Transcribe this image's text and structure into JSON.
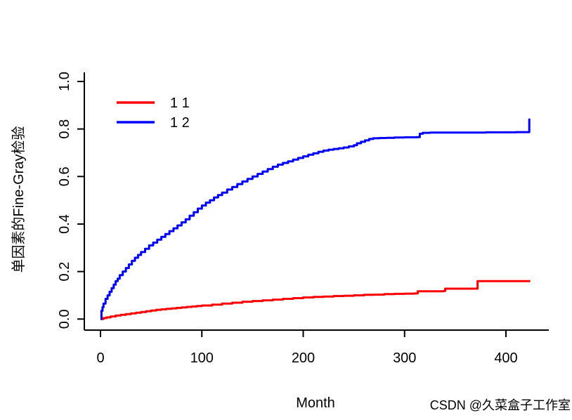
{
  "watermark": {
    "text": "CSDN @久菜盒子工作室",
    "color": "#c9c9c9"
  },
  "chart_data": {
    "type": "line",
    "step": true,
    "grid": false,
    "title": "",
    "xlabel": "Month",
    "ylabel": "单因素的Fine-Gray检验",
    "xlim": [
      0,
      425
    ],
    "ylim": [
      0,
      1.0
    ],
    "x_tick_values": [
      0,
      100,
      200,
      300,
      400
    ],
    "x_tick_labels": [
      "0",
      "100",
      "200",
      "300",
      "400"
    ],
    "y_tick_values": [
      0.0,
      0.2,
      0.4,
      0.6,
      0.8,
      1.0
    ],
    "y_tick_labels": [
      "0.0",
      "0.2",
      "0.4",
      "0.6",
      "0.8",
      "1.0"
    ],
    "legend_position": "top-left",
    "colors": {
      "group1": "#ff0000",
      "group2": "#0000ff"
    },
    "series": [
      {
        "name": "1 1",
        "color": "#ff0000",
        "points": [
          [
            0,
            0
          ],
          [
            3,
            0.004
          ],
          [
            6,
            0.007
          ],
          [
            10,
            0.011
          ],
          [
            15,
            0.015
          ],
          [
            20,
            0.018
          ],
          [
            25,
            0.021
          ],
          [
            30,
            0.024
          ],
          [
            35,
            0.027
          ],
          [
            40,
            0.03
          ],
          [
            45,
            0.033
          ],
          [
            50,
            0.036
          ],
          [
            55,
            0.039
          ],
          [
            60,
            0.041
          ],
          [
            65,
            0.043
          ],
          [
            70,
            0.045
          ],
          [
            75,
            0.047
          ],
          [
            80,
            0.049
          ],
          [
            85,
            0.051
          ],
          [
            90,
            0.053
          ],
          [
            95,
            0.055
          ],
          [
            100,
            0.057
          ],
          [
            110,
            0.061
          ],
          [
            120,
            0.065
          ],
          [
            130,
            0.069
          ],
          [
            140,
            0.073
          ],
          [
            150,
            0.076
          ],
          [
            160,
            0.079
          ],
          [
            170,
            0.082
          ],
          [
            180,
            0.085
          ],
          [
            190,
            0.088
          ],
          [
            200,
            0.091
          ],
          [
            210,
            0.093
          ],
          [
            220,
            0.095
          ],
          [
            230,
            0.097
          ],
          [
            240,
            0.098
          ],
          [
            250,
            0.1
          ],
          [
            260,
            0.102
          ],
          [
            270,
            0.103
          ],
          [
            280,
            0.105
          ],
          [
            290,
            0.106
          ],
          [
            300,
            0.107
          ],
          [
            310,
            0.108
          ],
          [
            313,
            0.117
          ],
          [
            325,
            0.117
          ],
          [
            338,
            0.118
          ],
          [
            340,
            0.128
          ],
          [
            355,
            0.128
          ],
          [
            370,
            0.128
          ],
          [
            372,
            0.16
          ],
          [
            400,
            0.16
          ],
          [
            424,
            0.16
          ]
        ]
      },
      {
        "name": "1 2",
        "color": "#0000ff",
        "points": [
          [
            0,
            0
          ],
          [
            1,
            0.035
          ],
          [
            2,
            0.05
          ],
          [
            3,
            0.065
          ],
          [
            5,
            0.085
          ],
          [
            7,
            0.1
          ],
          [
            9,
            0.115
          ],
          [
            11,
            0.13
          ],
          [
            13,
            0.145
          ],
          [
            15,
            0.16
          ],
          [
            17,
            0.17
          ],
          [
            19,
            0.185
          ],
          [
            22,
            0.2
          ],
          [
            25,
            0.215
          ],
          [
            28,
            0.23
          ],
          [
            31,
            0.245
          ],
          [
            34,
            0.258
          ],
          [
            37,
            0.27
          ],
          [
            40,
            0.282
          ],
          [
            44,
            0.296
          ],
          [
            48,
            0.31
          ],
          [
            52,
            0.322
          ],
          [
            56,
            0.334
          ],
          [
            60,
            0.346
          ],
          [
            64,
            0.358
          ],
          [
            68,
            0.37
          ],
          [
            72,
            0.382
          ],
          [
            76,
            0.394
          ],
          [
            80,
            0.407
          ],
          [
            84,
            0.42
          ],
          [
            88,
            0.435
          ],
          [
            92,
            0.45
          ],
          [
            96,
            0.465
          ],
          [
            100,
            0.478
          ],
          [
            104,
            0.49
          ],
          [
            108,
            0.5
          ],
          [
            112,
            0.512
          ],
          [
            116,
            0.522
          ],
          [
            120,
            0.532
          ],
          [
            125,
            0.545
          ],
          [
            130,
            0.556
          ],
          [
            135,
            0.568
          ],
          [
            140,
            0.579
          ],
          [
            145,
            0.59
          ],
          [
            150,
            0.6
          ],
          [
            155,
            0.611
          ],
          [
            160,
            0.621
          ],
          [
            165,
            0.631
          ],
          [
            170,
            0.641
          ],
          [
            175,
            0.65
          ],
          [
            180,
            0.657
          ],
          [
            185,
            0.664
          ],
          [
            190,
            0.671
          ],
          [
            195,
            0.678
          ],
          [
            200,
            0.685
          ],
          [
            205,
            0.692
          ],
          [
            210,
            0.698
          ],
          [
            215,
            0.704
          ],
          [
            220,
            0.709
          ],
          [
            225,
            0.713
          ],
          [
            230,
            0.716
          ],
          [
            235,
            0.719
          ],
          [
            240,
            0.722
          ],
          [
            245,
            0.727
          ],
          [
            250,
            0.732
          ],
          [
            253,
            0.74
          ],
          [
            257,
            0.746
          ],
          [
            261,
            0.752
          ],
          [
            265,
            0.758
          ],
          [
            269,
            0.761
          ],
          [
            275,
            0.762
          ],
          [
            282,
            0.763
          ],
          [
            290,
            0.764
          ],
          [
            300,
            0.765
          ],
          [
            312,
            0.766
          ],
          [
            315,
            0.78
          ],
          [
            318,
            0.784
          ],
          [
            325,
            0.785
          ],
          [
            350,
            0.785
          ],
          [
            380,
            0.786
          ],
          [
            410,
            0.787
          ],
          [
            422,
            0.787
          ],
          [
            423,
            0.84
          ],
          [
            424,
            0.84
          ]
        ]
      }
    ]
  }
}
